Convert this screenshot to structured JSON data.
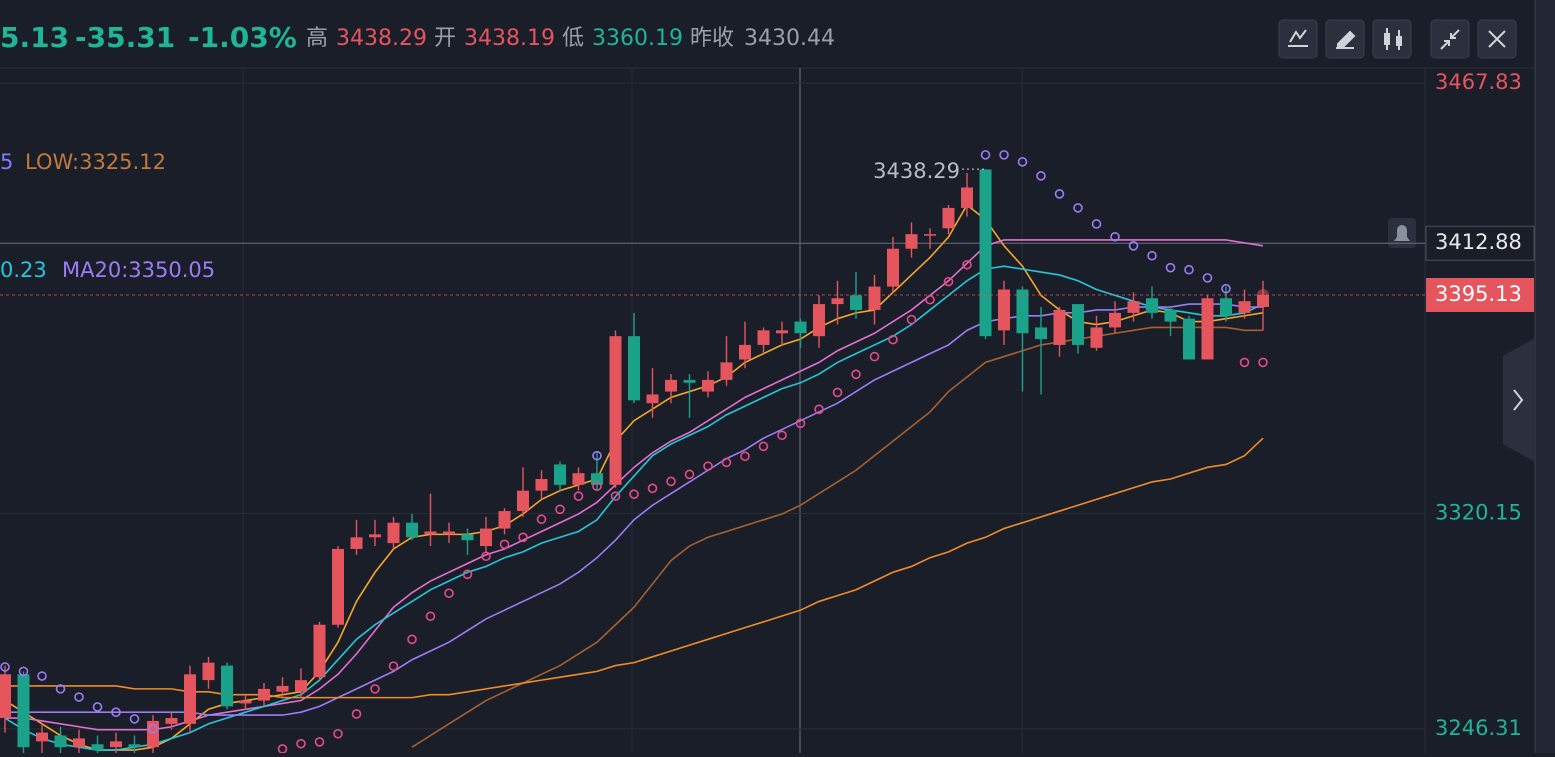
{
  "chart_data": {
    "type": "candlestick",
    "header": [
      {
        "text": "5.13",
        "color": "#1fb596"
      },
      {
        "text": "-35.31",
        "color": "#1fb596"
      },
      {
        "text": "-1.03%",
        "color": "#1fb596"
      },
      {
        "text": "高",
        "color": "#9aa0aa"
      },
      {
        "text": "3438.29",
        "color": "#e5555e"
      },
      {
        "text": "开",
        "color": "#9aa0aa"
      },
      {
        "text": "3438.19",
        "color": "#e5555e"
      },
      {
        "text": "低",
        "color": "#9aa0aa"
      },
      {
        "text": "3360.19",
        "color": "#1fb596"
      },
      {
        "text": "昨收",
        "color": "#9aa0aa"
      },
      {
        "text": "3430.44",
        "color": "#9aa0aa"
      }
    ],
    "legend": [
      {
        "text": "5",
        "color": "#7d7dff"
      },
      {
        "text": "LOW:3325.12",
        "color": "#c27a3a"
      },
      {
        "text": "0.23",
        "color": "#26c6da"
      },
      {
        "text": "MA20:3350.05",
        "color": "#9c7cf5"
      }
    ],
    "up_color": "#e5555e",
    "down_color": "#1aa38a",
    "open": [
      3250,
      3265,
      3242,
      3244,
      3240,
      3241,
      3240,
      3241,
      3240,
      3248,
      3248,
      3263,
      3268,
      3255,
      3256,
      3259,
      3259,
      3264,
      3282,
      3308,
      3312,
      3310,
      3317,
      3313,
      3313,
      3313,
      3309,
      3315,
      3321,
      3328,
      3337,
      3330,
      3334,
      3330,
      3381,
      3358,
      3362,
      3366,
      3362,
      3366,
      3373,
      3378,
      3382,
      3386,
      3381,
      3392,
      3395,
      3390,
      3398,
      3411,
      3416,
      3418,
      3425,
      3438.19,
      3383,
      3397,
      3384,
      3378,
      3392,
      3377,
      3384,
      3389,
      3394,
      3390,
      3387,
      3373,
      3394,
      3389,
      3391
    ],
    "high": [
      3268,
      3266,
      3248,
      3247,
      3246,
      3244,
      3245,
      3244,
      3251,
      3252,
      3268,
      3271,
      3269,
      3258,
      3262,
      3264,
      3267,
      3283,
      3309,
      3318,
      3318,
      3319,
      3320,
      3327,
      3317,
      3315,
      3319,
      3322,
      3336,
      3335,
      3338,
      3336,
      3341,
      3383,
      3389,
      3370,
      3368,
      3368,
      3369,
      3381,
      3386,
      3384,
      3386,
      3387,
      3395,
      3400,
      3403,
      3402,
      3415,
      3420,
      3418,
      3426,
      3437,
      3438.29,
      3400,
      3398,
      3391,
      3391,
      3392,
      3388,
      3393,
      3396,
      3398,
      3391,
      3388,
      3395,
      3398,
      3397,
      3400
    ],
    "low": [
      3245,
      3238,
      3238,
      3238,
      3238,
      3238,
      3238,
      3238,
      3238,
      3246,
      3245,
      3260,
      3253,
      3253,
      3254,
      3257,
      3257,
      3263,
      3281,
      3306,
      3309,
      3308,
      3311,
      3309,
      3310,
      3306,
      3307,
      3313,
      3319,
      3325,
      3328,
      3328,
      3328,
      3329,
      3358,
      3353,
      3358,
      3353,
      3360,
      3364,
      3370,
      3375,
      3378,
      3377,
      3377,
      3385,
      3387,
      3385,
      3396,
      3408,
      3411,
      3416,
      3422,
      3380,
      3378,
      3362,
      3361,
      3374,
      3375,
      3376,
      3382,
      3386,
      3387,
      3381,
      3373,
      3373,
      3386,
      3387,
      3383
    ],
    "close": [
      3265,
      3240,
      3245,
      3240,
      3243,
      3239,
      3242,
      3240,
      3249,
      3250,
      3265,
      3269,
      3254,
      3256,
      3260,
      3261,
      3263,
      3282,
      3308,
      3312,
      3313,
      3317,
      3312,
      3314,
      3314,
      3311,
      3315,
      3321,
      3328,
      3332,
      3330,
      3334,
      3330,
      3381,
      3359,
      3361,
      3366,
      3365,
      3366,
      3372,
      3378,
      3383,
      3383,
      3382,
      3392,
      3394,
      3390,
      3398,
      3411,
      3416,
      3416,
      3425,
      3432,
      3381,
      3397,
      3382,
      3380,
      3390,
      3378,
      3384,
      3389,
      3393,
      3389,
      3386,
      3373,
      3394,
      3388,
      3393,
      3395.13
    ],
    "lines": [
      {
        "color": "#f5a52a",
        "values": [
          3256,
          3252,
          3248,
          3244,
          3241,
          3239,
          3239,
          3239,
          3240,
          3243,
          3248,
          3253,
          3255,
          3256,
          3257,
          3258,
          3259,
          3266,
          3276,
          3290,
          3300,
          3308,
          3312,
          3313,
          3313,
          3313,
          3314,
          3316,
          3320,
          3325,
          3328,
          3330,
          3332,
          3345,
          3352,
          3356,
          3360,
          3362,
          3364,
          3367,
          3372,
          3375,
          3378,
          3380,
          3384,
          3387,
          3389,
          3390,
          3396,
          3402,
          3408,
          3415,
          3426,
          3421,
          3412,
          3405,
          3395,
          3390,
          3386,
          3385,
          3386,
          3388,
          3390,
          3389,
          3386,
          3386,
          3387,
          3388,
          3389
        ]
      },
      {
        "color": "#e070d0",
        "values": [
          3250,
          3250,
          3249,
          3248,
          3247,
          3246,
          3246,
          3246,
          3246,
          3247,
          3249,
          3251,
          3252,
          3253,
          3254,
          3255,
          3256,
          3260,
          3265,
          3272,
          3280,
          3288,
          3293,
          3297,
          3300,
          3303,
          3306,
          3308,
          3311,
          3314,
          3317,
          3320,
          3324,
          3330,
          3336,
          3341,
          3345,
          3348,
          3352,
          3356,
          3360,
          3363,
          3366,
          3369,
          3372,
          3376,
          3379,
          3382,
          3386,
          3390,
          3395,
          3400,
          3406,
          3412,
          3414,
          3414,
          3414,
          3414,
          3414,
          3414,
          3414,
          3414,
          3414,
          3414,
          3414,
          3414,
          3414,
          3413,
          3412
        ]
      },
      {
        "color": "#26c6da",
        "values": [
          3250,
          3246,
          3243,
          3241,
          3240,
          3239,
          3239,
          3240,
          3241,
          3243,
          3245,
          3248,
          3250,
          3252,
          3254,
          3256,
          3258,
          3263,
          3270,
          3277,
          3282,
          3286,
          3290,
          3294,
          3297,
          3300,
          3302,
          3305,
          3307,
          3310,
          3312,
          3314,
          3318,
          3326,
          3333,
          3340,
          3344,
          3347,
          3350,
          3354,
          3357,
          3360,
          3363,
          3365,
          3368,
          3372,
          3375,
          3378,
          3381,
          3385,
          3390,
          3395,
          3400,
          3404,
          3405,
          3404,
          3403,
          3402,
          3400,
          3397,
          3395,
          3393,
          3391,
          3390,
          3389,
          3388,
          3388,
          3389,
          3392
        ]
      },
      {
        "color": "#9c7cf5",
        "values": [
          3252,
          3252,
          3252,
          3252,
          3252,
          3252,
          3252,
          3252,
          3252,
          3252,
          3252,
          3251,
          3251,
          3251,
          3251,
          3251,
          3252,
          3254,
          3257,
          3260,
          3263,
          3266,
          3270,
          3273,
          3276,
          3280,
          3284,
          3287,
          3290,
          3293,
          3296,
          3300,
          3305,
          3311,
          3318,
          3323,
          3327,
          3331,
          3335,
          3339,
          3342,
          3346,
          3349,
          3352,
          3355,
          3358,
          3362,
          3366,
          3369,
          3372,
          3375,
          3378,
          3383,
          3386,
          3387,
          3388,
          3388,
          3389,
          3389,
          3390,
          3390,
          3391,
          3391,
          3391,
          3392,
          3392,
          3392,
          3391,
          3391
        ]
      },
      {
        "color": "#a8602e",
        "values": [
          null,
          null,
          null,
          null,
          null,
          null,
          null,
          null,
          null,
          null,
          null,
          null,
          null,
          null,
          null,
          null,
          null,
          null,
          null,
          null,
          null,
          null,
          3240,
          3244,
          3248,
          3252,
          3256,
          3259,
          3262,
          3265,
          3268,
          3272,
          3276,
          3282,
          3288,
          3296,
          3304,
          3309,
          3312,
          3314,
          3316,
          3318,
          3320,
          3323,
          3327,
          3331,
          3335,
          3340,
          3345,
          3350,
          3355,
          3362,
          3367,
          3372,
          3374,
          3376,
          3378,
          3379,
          3380,
          3381,
          3382,
          3383,
          3384,
          3384,
          3384,
          3384,
          3384,
          3383,
          3383
        ]
      },
      {
        "color": "#f08c28",
        "values": [
          3261,
          3261,
          3261,
          3261,
          3261,
          3261,
          3261,
          3260,
          3260,
          3260,
          3259,
          3259,
          3258,
          3258,
          3258,
          3257,
          3257,
          3257,
          3257,
          3257,
          3257,
          3257,
          3257,
          3258,
          3258,
          3259,
          3260,
          3261,
          3262,
          3263,
          3264,
          3265,
          3266,
          3268,
          3269,
          3271,
          3273,
          3275,
          3277,
          3279,
          3281,
          3283,
          3285,
          3287,
          3290,
          3292,
          3294,
          3297,
          3300,
          3302,
          3305,
          3307,
          3310,
          3312,
          3315,
          3317,
          3319,
          3321,
          3323,
          3325,
          3327,
          3329,
          3331,
          3332,
          3334,
          3336,
          3337,
          3340,
          3346
        ]
      }
    ],
    "dots": [
      {
        "color": "#e84a8a",
        "values": [
          null,
          null,
          null,
          null,
          null,
          null,
          null,
          null,
          null,
          null,
          null,
          null,
          null,
          null,
          null,
          3239.4,
          3241.2,
          3241.8,
          3244.6,
          3251.4,
          3260,
          3267.8,
          3277,
          3284.9,
          3292.8,
          3299.3,
          3305.5,
          3309.6,
          3312,
          3318.2,
          3321.6,
          3326.1,
          3329.5,
          3326.1,
          3326.8,
          3328.8,
          3331.2,
          3333.6,
          3336.4,
          3337.7,
          3339.8,
          3343.2,
          3347,
          3351.1,
          3355.9,
          3361.7,
          3367.9,
          3374,
          3379.8,
          3386.7,
          3393.5,
          3399.7,
          3405.5,
          null,
          null,
          null,
          null,
          null,
          null,
          null,
          null,
          null,
          null,
          null,
          null,
          null,
          null,
          3372,
          3372
        ]
      },
      {
        "color": "#9c7cf5",
        "values": [
          3267.5,
          3266,
          3264.4,
          3260,
          3257.2,
          3253.8,
          3252,
          3249.7,
          3246.3,
          null,
          null,
          null,
          null,
          null,
          null,
          null,
          null,
          null,
          null,
          null,
          null,
          null,
          null,
          null,
          null,
          null,
          null,
          null,
          null,
          null,
          null,
          null,
          3340,
          null,
          null,
          null,
          null,
          null,
          null,
          null,
          null,
          null,
          null,
          null,
          null,
          null,
          null,
          null,
          null,
          null,
          null,
          null,
          null,
          3443.2,
          3443.2,
          3440.8,
          3436,
          3429.8,
          3425,
          3419.5,
          3415.1,
          3412,
          3408.6,
          3404.5,
          3403.8,
          3401,
          3397.3,
          null,
          null
        ]
      }
    ],
    "ylim": [
      3238,
      3473
    ],
    "yticks": [
      3467.83,
      3320.15,
      3246.31
    ],
    "crosshair": 3412.88,
    "grid": true
  }
}
